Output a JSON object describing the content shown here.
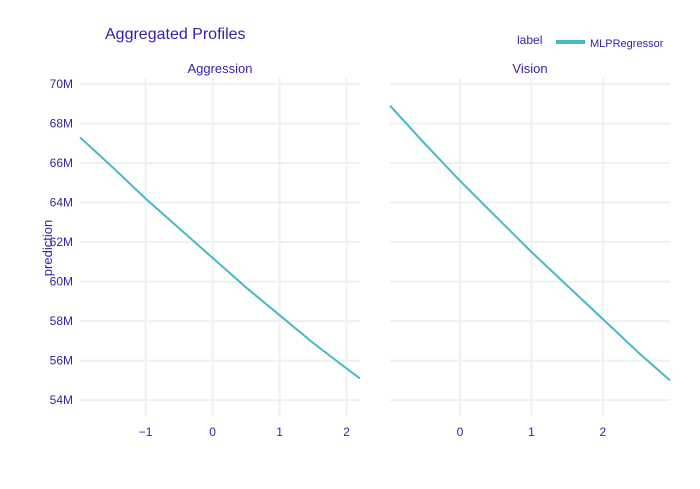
{
  "chart_data": {
    "type": "line",
    "title": "Aggregated Profiles",
    "ylabel": "prediction",
    "legend": {
      "title": "label",
      "placement": "top-right",
      "entries": [
        {
          "name": "MLPRegressor",
          "color": "#46bac2"
        }
      ]
    },
    "colors": {
      "text": "#371ea3",
      "grid": "#f0f0f4",
      "line": "#46bac2"
    },
    "yticks": [
      {
        "value": 54,
        "label": "54M"
      },
      {
        "value": 56,
        "label": "56M"
      },
      {
        "value": 58,
        "label": "58M"
      },
      {
        "value": 60,
        "label": "60M"
      },
      {
        "value": 62,
        "label": "62M"
      },
      {
        "value": 64,
        "label": "64M"
      },
      {
        "value": 66,
        "label": "66M"
      },
      {
        "value": 68,
        "label": "68M"
      },
      {
        "value": 70,
        "label": "70M"
      }
    ],
    "ylim": [
      53.2,
      70.3
    ],
    "y_unit": "M",
    "grid": true,
    "panels": [
      {
        "title": "Aggression",
        "xlim": [
          -1.98,
          2.2
        ],
        "xticks": [
          {
            "value": -1,
            "label": "−1"
          },
          {
            "value": 0,
            "label": "0"
          },
          {
            "value": 1,
            "label": "1"
          },
          {
            "value": 2,
            "label": "2"
          }
        ],
        "series": [
          {
            "name": "MLPRegressor",
            "x": [
              -1.98,
              -1.5,
              -1.0,
              -0.5,
              0.0,
              0.5,
              1.0,
              1.5,
              2.0,
              2.2
            ],
            "y": [
              67.3,
              65.8,
              64.2,
              62.7,
              61.2,
              59.7,
              58.3,
              56.9,
              55.6,
              55.1
            ]
          }
        ]
      },
      {
        "title": "Vision",
        "xlim": [
          -0.98,
          2.94
        ],
        "xticks": [
          {
            "value": 0,
            "label": "0"
          },
          {
            "value": 1,
            "label": "1"
          },
          {
            "value": 2,
            "label": "2"
          }
        ],
        "series": [
          {
            "name": "MLPRegressor",
            "x": [
              -0.98,
              -0.5,
              0.0,
              0.5,
              1.0,
              1.5,
              2.0,
              2.5,
              2.94
            ],
            "y": [
              68.9,
              67.0,
              65.1,
              63.3,
              61.5,
              59.8,
              58.1,
              56.4,
              55.0
            ]
          }
        ]
      }
    ]
  }
}
